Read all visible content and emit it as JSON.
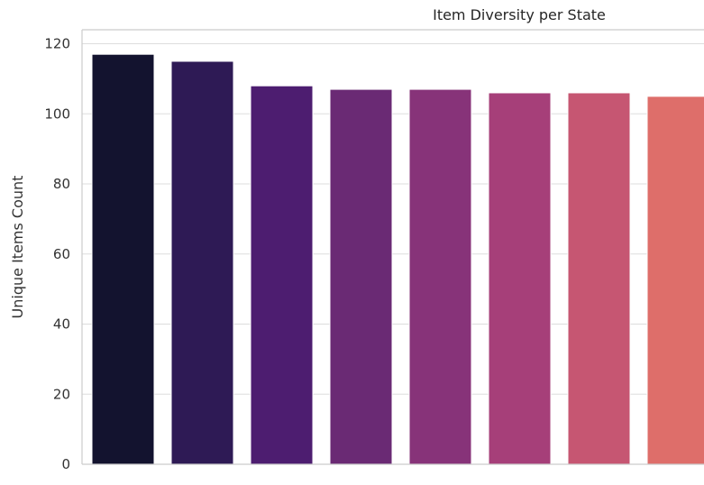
{
  "chart_data": {
    "type": "bar",
    "title": "Item Diversity per State",
    "xlabel": "",
    "ylabel": "Unique Items Count",
    "ylim": [
      0,
      124
    ],
    "yticks": [
      0,
      20,
      40,
      60,
      80,
      100,
      120
    ],
    "ytick_labels": [
      "0",
      "20",
      "40",
      "60",
      "80",
      "100",
      "120"
    ],
    "grid": true,
    "categories": [
      "",
      "",
      "",
      "",
      "",
      "",
      "",
      ""
    ],
    "values": [
      117,
      115,
      108,
      107,
      107,
      106,
      106,
      105
    ],
    "colors": [
      "#13132f",
      "#2e1a55",
      "#4d1d70",
      "#6a2a74",
      "#873379",
      "#a63f79",
      "#c65672",
      "#de6e6a"
    ]
  }
}
